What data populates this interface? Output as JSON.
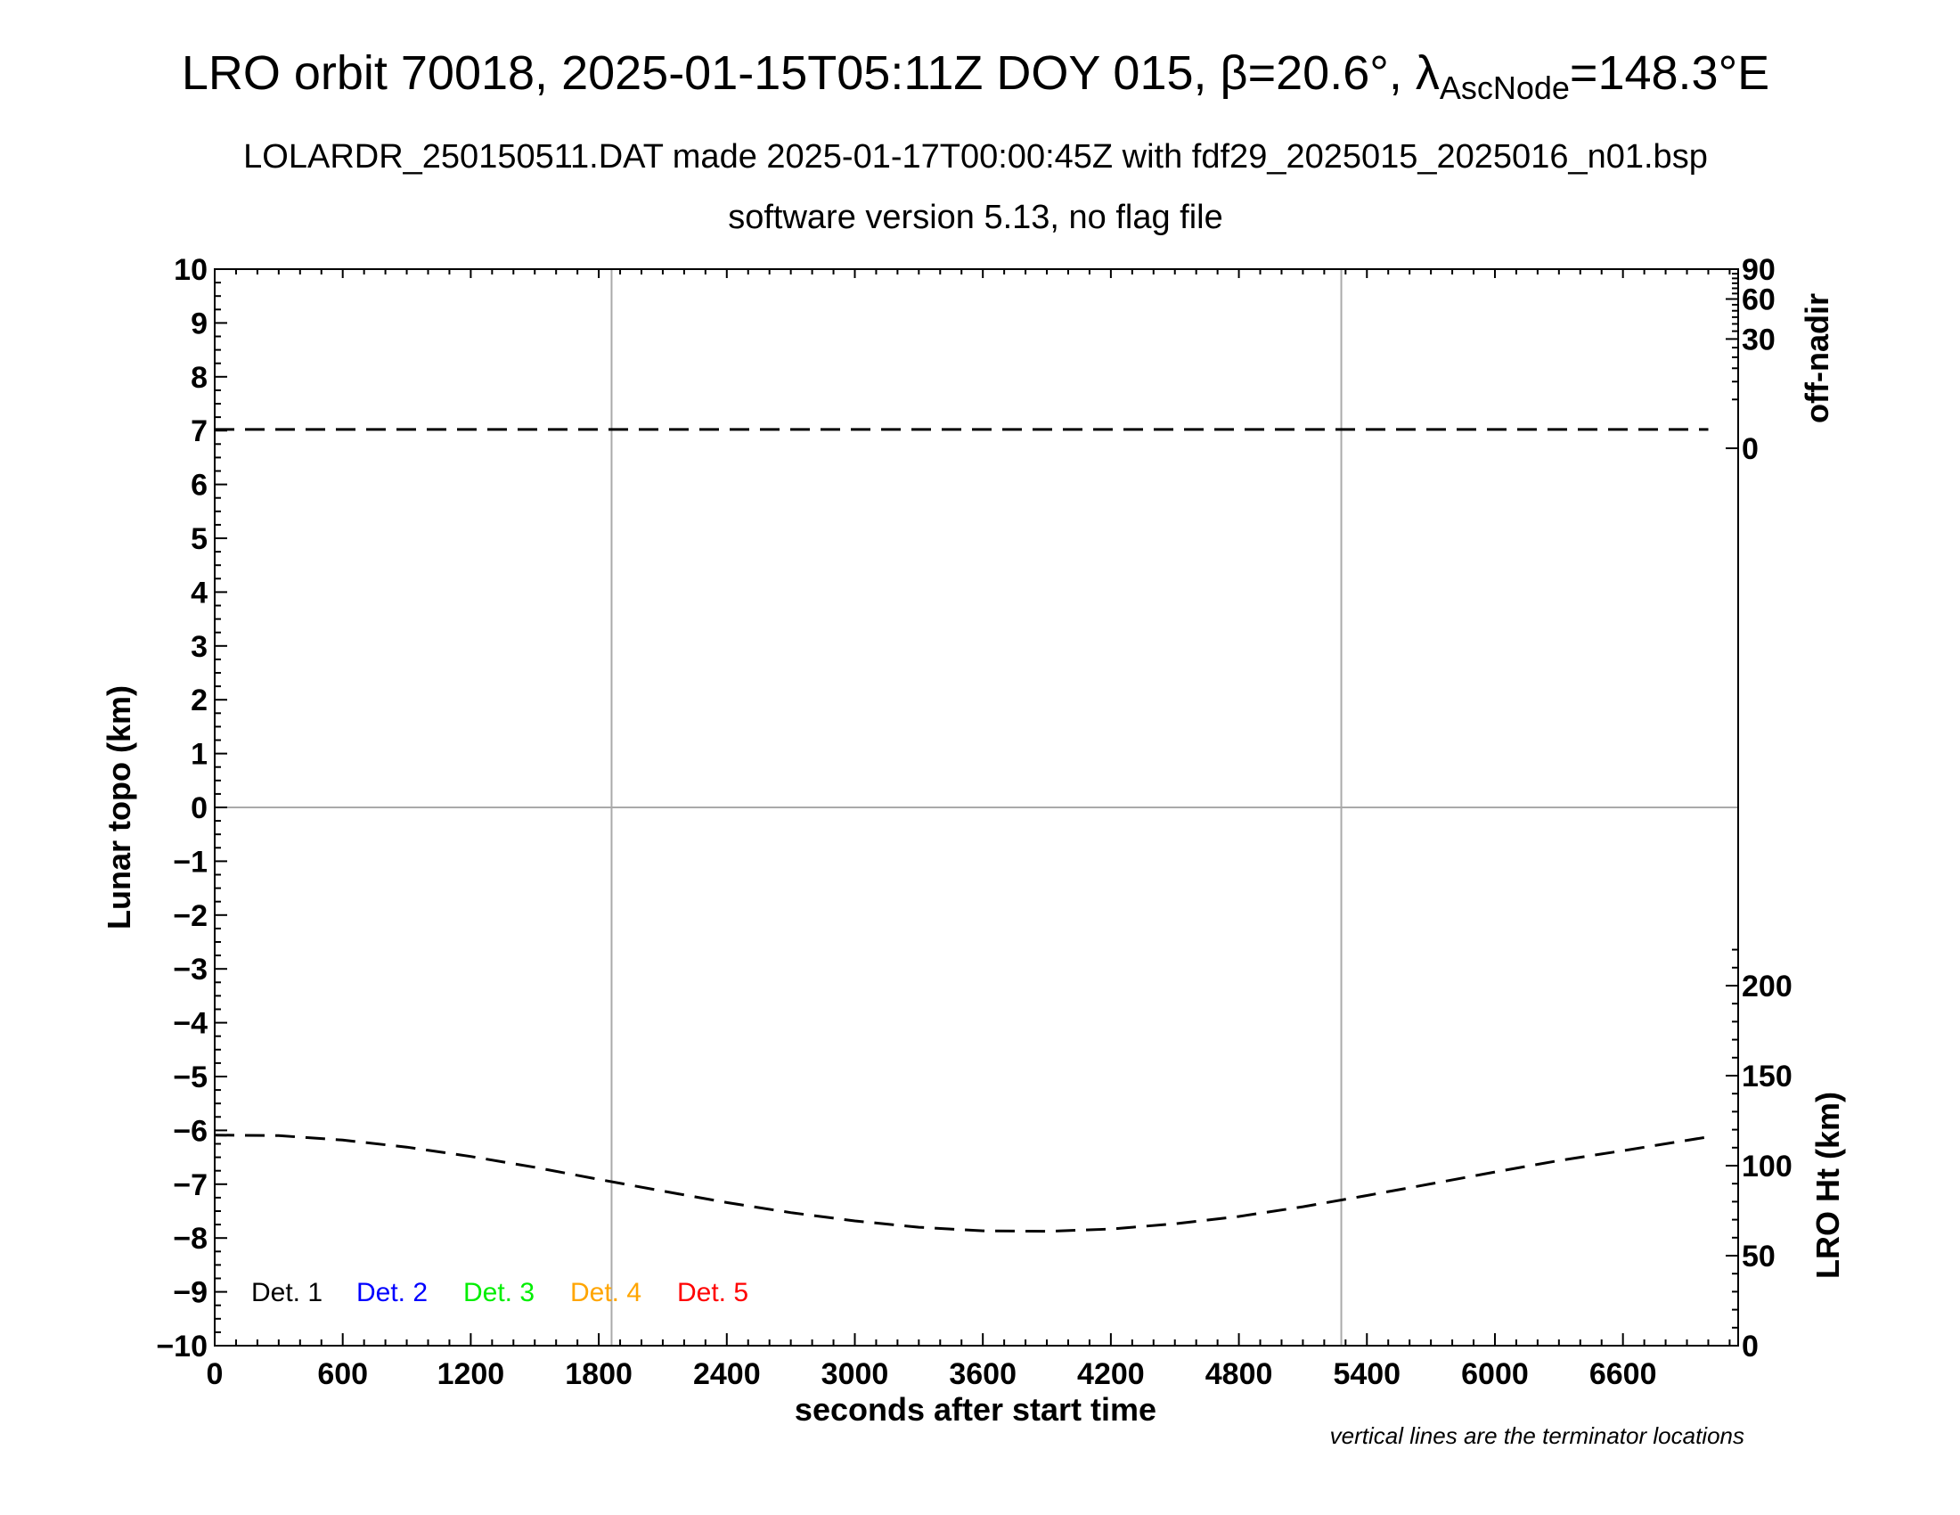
{
  "chart_data": {
    "type": "line",
    "title": {
      "main": "LRO orbit 70018, 2025-01-15T05:11Z DOY 015, β=20.6°, λ",
      "sub": "AscNode",
      "suffix": "=148.3°E"
    },
    "subtitle_1": "LOLARDR_250150511.DAT made 2025-01-17T00:00:45Z with fdf29_2025015_2025016_n01.bsp",
    "subtitle_2": "software version 5.13, no flag file",
    "xlabel": "seconds after start time",
    "ylabel": "Lunar topo (km)",
    "y2label_top": "off-nadir",
    "y2label_bottom": "LRO Ht (km)",
    "note": "vertical lines are the terminator locations",
    "xlim": [
      0,
      7140
    ],
    "ylim": [
      -10,
      10
    ],
    "x_ticks": [
      0,
      600,
      1200,
      1800,
      2400,
      3000,
      3600,
      4200,
      4800,
      5400,
      6000,
      6600
    ],
    "y_ticks": [
      10,
      9,
      8,
      7,
      6,
      5,
      4,
      3,
      2,
      1,
      0,
      -1,
      -2,
      -3,
      -4,
      -5,
      -6,
      -7,
      -8,
      -9,
      -10
    ],
    "y_tick_labels": [
      "10",
      "9",
      "8",
      "7",
      "6",
      "5",
      "4",
      "3",
      "2",
      "1",
      "0",
      "−1",
      "−2",
      "−3",
      "−4",
      "−5",
      "−6",
      "−7",
      "−8",
      "−9",
      "−10"
    ],
    "off_nadir_ticks": [
      90,
      60,
      30,
      0
    ],
    "lro_ht_ticks": [
      200,
      150,
      100,
      50,
      0
    ],
    "lro_ht_range": [
      0,
      600
    ],
    "terminators": [
      1860,
      5280
    ],
    "grid": "horizontal line at 0",
    "legend": [
      {
        "label": "Det. 1",
        "color": "#000000"
      },
      {
        "label": "Det. 2",
        "color": "#0000ff"
      },
      {
        "label": "Det. 3",
        "color": "#00ee00"
      },
      {
        "label": "Det. 4",
        "color": "#ffa500"
      },
      {
        "label": "Det. 5",
        "color": "#ff0000"
      }
    ],
    "series": [
      {
        "style": "dashed",
        "axis": "off-nadir",
        "x": [
          0,
          7000
        ],
        "y": [
          0.6,
          0.6
        ]
      },
      {
        "style": "dashed",
        "axis": "lro-ht",
        "x": [
          0,
          300,
          600,
          900,
          1200,
          1500,
          1800,
          2100,
          2400,
          2700,
          3000,
          3300,
          3600,
          3900,
          4200,
          4500,
          4800,
          5100,
          5400,
          5700,
          6000,
          6300,
          6600,
          7000
        ],
        "y": [
          117,
          116.7,
          114.2,
          110.3,
          105.1,
          99.1,
          92.4,
          85.9,
          79.5,
          73.9,
          69.3,
          65.8,
          63.8,
          63.5,
          64.8,
          67.7,
          71.8,
          77.2,
          83.4,
          89.9,
          96.5,
          102.8,
          108.3,
          116
        ]
      }
    ]
  }
}
